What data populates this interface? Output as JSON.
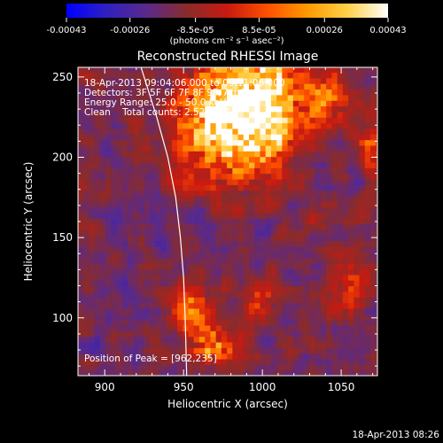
{
  "colorbar": {
    "tick_labels": [
      "-0.00043",
      "-0.00026",
      "-8.5e-05",
      "8.5e-05",
      "0.00026",
      "0.00043"
    ],
    "tick_values": [
      -0.00043,
      -0.00026,
      -8.5e-05,
      8.5e-05,
      0.00026,
      0.00043
    ],
    "range": [
      -0.00043,
      0.00043
    ],
    "units_label": "(photons cm⁻² s⁻¹ asec⁻²)",
    "stops": [
      "#0000ff",
      "#3020c0",
      "#5a2a8a",
      "#8a2b2b",
      "#c81a10",
      "#ff5000",
      "#ff9a00",
      "#ffd24a",
      "#ffffff"
    ]
  },
  "chart_data": {
    "type": "heatmap",
    "title": "Reconstructed RHESSI Image",
    "xlabel": "Heliocentric X (arcsec)",
    "ylabel": "Heliocentric Y (arcsec)",
    "xlim": [
      883,
      1073
    ],
    "ylim": [
      64,
      256
    ],
    "x_ticks": [
      900,
      950,
      1000,
      1050
    ],
    "y_ticks": [
      100,
      150,
      200,
      250
    ],
    "annotations": {
      "time": "18-Apr-2013 09:04:06.000 to 09:11:06.000",
      "detectors": "Detectors: 3F 5F 6F 7F 8F 9F, Att 0",
      "energy": "Energy Range: 25.0 - 50.0 keV",
      "method": "Clean    Total counts: 2.52E+04",
      "peak": "Position of Peak = [962,235]"
    },
    "peak_position": [
      962,
      235
    ],
    "limb_curve": [
      [
        923,
        256
      ],
      [
        933,
        225
      ],
      [
        940,
        200
      ],
      [
        945,
        175
      ],
      [
        948,
        150
      ],
      [
        950,
        125
      ],
      [
        951,
        100
      ],
      [
        952,
        64
      ]
    ],
    "emission_sources": [
      {
        "x": 975,
        "y": 225,
        "sx": 18,
        "sy": 25,
        "amp": 1.0
      },
      {
        "x": 1003,
        "y": 232,
        "sx": 14,
        "sy": 22,
        "amp": 0.9
      },
      {
        "x": 1040,
        "y": 235,
        "sx": 10,
        "sy": 12,
        "amp": 0.5
      },
      {
        "x": 1068,
        "y": 205,
        "sx": 6,
        "sy": 10,
        "amp": 0.4
      },
      {
        "x": 955,
        "y": 105,
        "sx": 8,
        "sy": 10,
        "amp": 0.5
      },
      {
        "x": 968,
        "y": 82,
        "sx": 10,
        "sy": 8,
        "amp": 0.6
      },
      {
        "x": 1000,
        "y": 110,
        "sx": 8,
        "sy": 8,
        "amp": 0.3
      },
      {
        "x": 1055,
        "y": 120,
        "sx": 10,
        "sy": 12,
        "amp": 0.3
      }
    ],
    "background_level": -0.35
  },
  "footer": {
    "timestamp": "18-Apr-2013 08:26"
  }
}
